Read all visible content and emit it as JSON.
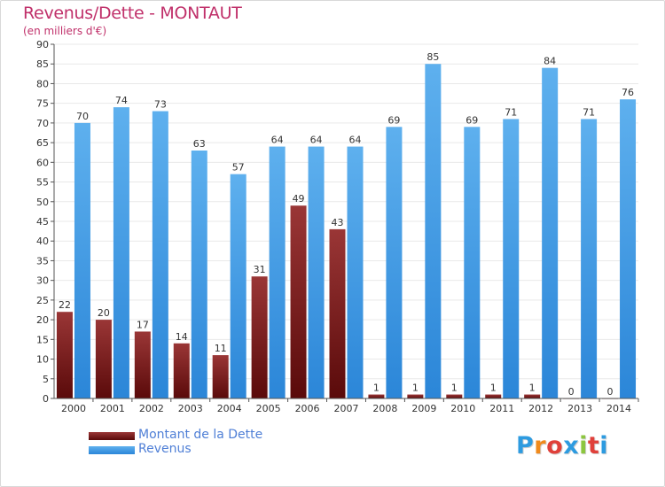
{
  "header": {
    "title": "Revenus/Dette - MONTAUT",
    "subtitle": "(en milliers d'€)"
  },
  "legend": {
    "debt_label": "Montant de la Dette",
    "revenue_label": "Revenus"
  },
  "logo": {
    "text": "Proxiti"
  },
  "colors": {
    "debt_dark": "#5a0a0a",
    "debt_light": "#9a3636",
    "revenue_dark": "#2b86d8",
    "revenue_light": "#5eb0ee",
    "title": "#c0306a",
    "legend_text": "#4f7fd6",
    "grid": "#ffffff",
    "axis": "#555555"
  },
  "chart_data": {
    "type": "bar",
    "title": "Revenus/Dette - MONTAUT",
    "subtitle": "(en milliers d'€)",
    "xlabel": "",
    "ylabel": "",
    "ylim": [
      0,
      90
    ],
    "ytick_step": 5,
    "categories": [
      "2000",
      "2001",
      "2002",
      "2003",
      "2004",
      "2005",
      "2006",
      "2007",
      "2008",
      "2009",
      "2010",
      "2011",
      "2012",
      "2013",
      "2014"
    ],
    "series": [
      {
        "name": "Montant de la Dette",
        "values": [
          22,
          20,
          17,
          14,
          11,
          31,
          49,
          43,
          1,
          1,
          1,
          1,
          1,
          0,
          0
        ]
      },
      {
        "name": "Revenus",
        "values": [
          70,
          74,
          73,
          63,
          57,
          64,
          64,
          64,
          69,
          85,
          69,
          71,
          84,
          71,
          76
        ]
      }
    ],
    "legend_position": "bottom-left"
  }
}
